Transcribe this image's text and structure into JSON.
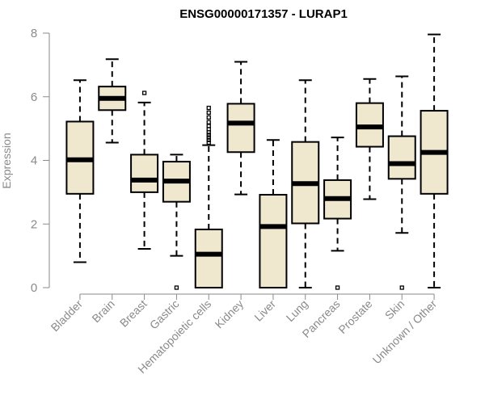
{
  "chart_data": {
    "type": "boxplot",
    "title": "ENSG00000171357 - LURAP1",
    "xlabel": "",
    "ylabel": "Expression",
    "ylim": [
      0,
      8
    ],
    "yticks": [
      0,
      2,
      4,
      6,
      8
    ],
    "grid": false,
    "box_fill": "#efe8cf",
    "categories": [
      "Bladder",
      "Brain",
      "Breast",
      "Gastric",
      "Hematopoietic cells",
      "Kidney",
      "Liver",
      "Lung",
      "Pancreas",
      "Prostate",
      "Skin",
      "Unknown / Other"
    ],
    "boxes": [
      {
        "name": "Bladder",
        "whisker_low": 0.8,
        "q1": 2.95,
        "median": 4.02,
        "q3": 5.22,
        "whisker_high": 6.52,
        "outliers": []
      },
      {
        "name": "Brain",
        "whisker_low": 4.56,
        "q1": 5.58,
        "median": 5.95,
        "q3": 6.32,
        "whisker_high": 7.18,
        "outliers": []
      },
      {
        "name": "Breast",
        "whisker_low": 1.22,
        "q1": 3.0,
        "median": 3.38,
        "q3": 4.18,
        "whisker_high": 5.82,
        "outliers": [
          6.12
        ]
      },
      {
        "name": "Gastric",
        "whisker_low": 1.0,
        "q1": 2.7,
        "median": 3.35,
        "q3": 3.96,
        "whisker_high": 4.18,
        "outliers": [
          0.0
        ]
      },
      {
        "name": "Hematopoietic cells",
        "whisker_low": 0.0,
        "q1": 0.0,
        "median": 1.05,
        "q3": 1.83,
        "whisker_high": 4.48,
        "outliers": [
          4.56,
          4.64,
          4.72,
          4.8,
          4.88,
          4.98,
          5.08,
          5.2,
          5.35,
          5.5,
          5.65
        ]
      },
      {
        "name": "Kidney",
        "whisker_low": 2.93,
        "q1": 4.26,
        "median": 5.17,
        "q3": 5.78,
        "whisker_high": 7.1,
        "outliers": []
      },
      {
        "name": "Liver",
        "whisker_low": 0.0,
        "q1": 0.0,
        "median": 1.92,
        "q3": 2.92,
        "whisker_high": 4.64,
        "outliers": []
      },
      {
        "name": "Lung",
        "whisker_low": 0.0,
        "q1": 2.02,
        "median": 3.27,
        "q3": 4.58,
        "whisker_high": 6.52,
        "outliers": []
      },
      {
        "name": "Pancreas",
        "whisker_low": 1.16,
        "q1": 2.17,
        "median": 2.8,
        "q3": 3.38,
        "whisker_high": 4.72,
        "outliers": [
          0.0
        ]
      },
      {
        "name": "Prostate",
        "whisker_low": 2.78,
        "q1": 4.43,
        "median": 5.05,
        "q3": 5.8,
        "whisker_high": 6.56,
        "outliers": []
      },
      {
        "name": "Skin",
        "whisker_low": 1.72,
        "q1": 3.42,
        "median": 3.9,
        "q3": 4.76,
        "whisker_high": 6.64,
        "outliers": [
          0.0
        ]
      },
      {
        "name": "Unknown / Other",
        "whisker_low": 0.0,
        "q1": 2.95,
        "median": 4.25,
        "q3": 5.56,
        "whisker_high": 7.96,
        "outliers": []
      }
    ]
  }
}
